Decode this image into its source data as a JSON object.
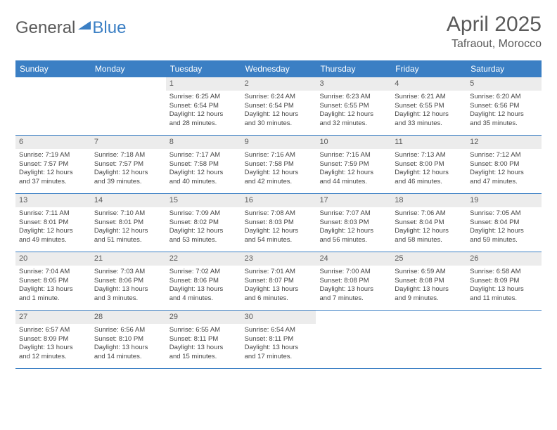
{
  "logo": {
    "text_gray": "General",
    "text_blue": "Blue"
  },
  "title": "April 2025",
  "location": "Tafraout, Morocco",
  "header_bg": "#3b7fc4",
  "weekdays": [
    "Sunday",
    "Monday",
    "Tuesday",
    "Wednesday",
    "Thursday",
    "Friday",
    "Saturday"
  ],
  "weeks": [
    [
      {
        "n": "",
        "sr": "",
        "ss": "",
        "d1": "",
        "d2": ""
      },
      {
        "n": "",
        "sr": "",
        "ss": "",
        "d1": "",
        "d2": ""
      },
      {
        "n": "1",
        "sr": "Sunrise: 6:25 AM",
        "ss": "Sunset: 6:54 PM",
        "d1": "Daylight: 12 hours",
        "d2": "and 28 minutes."
      },
      {
        "n": "2",
        "sr": "Sunrise: 6:24 AM",
        "ss": "Sunset: 6:54 PM",
        "d1": "Daylight: 12 hours",
        "d2": "and 30 minutes."
      },
      {
        "n": "3",
        "sr": "Sunrise: 6:23 AM",
        "ss": "Sunset: 6:55 PM",
        "d1": "Daylight: 12 hours",
        "d2": "and 32 minutes."
      },
      {
        "n": "4",
        "sr": "Sunrise: 6:21 AM",
        "ss": "Sunset: 6:55 PM",
        "d1": "Daylight: 12 hours",
        "d2": "and 33 minutes."
      },
      {
        "n": "5",
        "sr": "Sunrise: 6:20 AM",
        "ss": "Sunset: 6:56 PM",
        "d1": "Daylight: 12 hours",
        "d2": "and 35 minutes."
      }
    ],
    [
      {
        "n": "6",
        "sr": "Sunrise: 7:19 AM",
        "ss": "Sunset: 7:57 PM",
        "d1": "Daylight: 12 hours",
        "d2": "and 37 minutes."
      },
      {
        "n": "7",
        "sr": "Sunrise: 7:18 AM",
        "ss": "Sunset: 7:57 PM",
        "d1": "Daylight: 12 hours",
        "d2": "and 39 minutes."
      },
      {
        "n": "8",
        "sr": "Sunrise: 7:17 AM",
        "ss": "Sunset: 7:58 PM",
        "d1": "Daylight: 12 hours",
        "d2": "and 40 minutes."
      },
      {
        "n": "9",
        "sr": "Sunrise: 7:16 AM",
        "ss": "Sunset: 7:58 PM",
        "d1": "Daylight: 12 hours",
        "d2": "and 42 minutes."
      },
      {
        "n": "10",
        "sr": "Sunrise: 7:15 AM",
        "ss": "Sunset: 7:59 PM",
        "d1": "Daylight: 12 hours",
        "d2": "and 44 minutes."
      },
      {
        "n": "11",
        "sr": "Sunrise: 7:13 AM",
        "ss": "Sunset: 8:00 PM",
        "d1": "Daylight: 12 hours",
        "d2": "and 46 minutes."
      },
      {
        "n": "12",
        "sr": "Sunrise: 7:12 AM",
        "ss": "Sunset: 8:00 PM",
        "d1": "Daylight: 12 hours",
        "d2": "and 47 minutes."
      }
    ],
    [
      {
        "n": "13",
        "sr": "Sunrise: 7:11 AM",
        "ss": "Sunset: 8:01 PM",
        "d1": "Daylight: 12 hours",
        "d2": "and 49 minutes."
      },
      {
        "n": "14",
        "sr": "Sunrise: 7:10 AM",
        "ss": "Sunset: 8:01 PM",
        "d1": "Daylight: 12 hours",
        "d2": "and 51 minutes."
      },
      {
        "n": "15",
        "sr": "Sunrise: 7:09 AM",
        "ss": "Sunset: 8:02 PM",
        "d1": "Daylight: 12 hours",
        "d2": "and 53 minutes."
      },
      {
        "n": "16",
        "sr": "Sunrise: 7:08 AM",
        "ss": "Sunset: 8:03 PM",
        "d1": "Daylight: 12 hours",
        "d2": "and 54 minutes."
      },
      {
        "n": "17",
        "sr": "Sunrise: 7:07 AM",
        "ss": "Sunset: 8:03 PM",
        "d1": "Daylight: 12 hours",
        "d2": "and 56 minutes."
      },
      {
        "n": "18",
        "sr": "Sunrise: 7:06 AM",
        "ss": "Sunset: 8:04 PM",
        "d1": "Daylight: 12 hours",
        "d2": "and 58 minutes."
      },
      {
        "n": "19",
        "sr": "Sunrise: 7:05 AM",
        "ss": "Sunset: 8:04 PM",
        "d1": "Daylight: 12 hours",
        "d2": "and 59 minutes."
      }
    ],
    [
      {
        "n": "20",
        "sr": "Sunrise: 7:04 AM",
        "ss": "Sunset: 8:05 PM",
        "d1": "Daylight: 13 hours",
        "d2": "and 1 minute."
      },
      {
        "n": "21",
        "sr": "Sunrise: 7:03 AM",
        "ss": "Sunset: 8:06 PM",
        "d1": "Daylight: 13 hours",
        "d2": "and 3 minutes."
      },
      {
        "n": "22",
        "sr": "Sunrise: 7:02 AM",
        "ss": "Sunset: 8:06 PM",
        "d1": "Daylight: 13 hours",
        "d2": "and 4 minutes."
      },
      {
        "n": "23",
        "sr": "Sunrise: 7:01 AM",
        "ss": "Sunset: 8:07 PM",
        "d1": "Daylight: 13 hours",
        "d2": "and 6 minutes."
      },
      {
        "n": "24",
        "sr": "Sunrise: 7:00 AM",
        "ss": "Sunset: 8:08 PM",
        "d1": "Daylight: 13 hours",
        "d2": "and 7 minutes."
      },
      {
        "n": "25",
        "sr": "Sunrise: 6:59 AM",
        "ss": "Sunset: 8:08 PM",
        "d1": "Daylight: 13 hours",
        "d2": "and 9 minutes."
      },
      {
        "n": "26",
        "sr": "Sunrise: 6:58 AM",
        "ss": "Sunset: 8:09 PM",
        "d1": "Daylight: 13 hours",
        "d2": "and 11 minutes."
      }
    ],
    [
      {
        "n": "27",
        "sr": "Sunrise: 6:57 AM",
        "ss": "Sunset: 8:09 PM",
        "d1": "Daylight: 13 hours",
        "d2": "and 12 minutes."
      },
      {
        "n": "28",
        "sr": "Sunrise: 6:56 AM",
        "ss": "Sunset: 8:10 PM",
        "d1": "Daylight: 13 hours",
        "d2": "and 14 minutes."
      },
      {
        "n": "29",
        "sr": "Sunrise: 6:55 AM",
        "ss": "Sunset: 8:11 PM",
        "d1": "Daylight: 13 hours",
        "d2": "and 15 minutes."
      },
      {
        "n": "30",
        "sr": "Sunrise: 6:54 AM",
        "ss": "Sunset: 8:11 PM",
        "d1": "Daylight: 13 hours",
        "d2": "and 17 minutes."
      },
      {
        "n": "",
        "sr": "",
        "ss": "",
        "d1": "",
        "d2": ""
      },
      {
        "n": "",
        "sr": "",
        "ss": "",
        "d1": "",
        "d2": ""
      },
      {
        "n": "",
        "sr": "",
        "ss": "",
        "d1": "",
        "d2": ""
      }
    ]
  ]
}
